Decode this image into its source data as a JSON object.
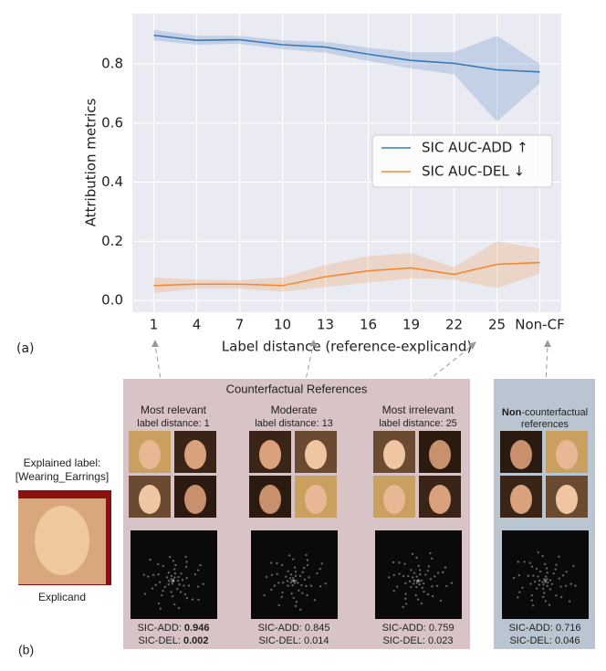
{
  "chart_data": {
    "type": "line",
    "panel_label": "(a)",
    "xlabel": "Label distance (reference-explicand)",
    "ylabel": "Attribution metrics",
    "categories": [
      "1",
      "4",
      "7",
      "10",
      "13",
      "16",
      "19",
      "22",
      "25",
      "Non-CF"
    ],
    "ylim": [
      -0.04,
      0.97
    ],
    "yticks": [
      {
        "value": 0,
        "label": "0.0"
      },
      0.2,
      0.4,
      0.6,
      0.8
    ],
    "grid": true,
    "legend": "right",
    "series": [
      {
        "name": "SIC AUC-ADD ↑",
        "color": "#3a78b5",
        "values": [
          0.897,
          0.88,
          0.882,
          0.865,
          0.857,
          0.833,
          0.812,
          0.802,
          0.78,
          0.773
        ],
        "lower": [
          0.88,
          0.865,
          0.868,
          0.85,
          0.838,
          0.81,
          0.785,
          0.765,
          0.605,
          0.735
        ],
        "upper": [
          0.915,
          0.895,
          0.895,
          0.88,
          0.875,
          0.855,
          0.84,
          0.84,
          0.895,
          0.8
        ]
      },
      {
        "name": "SIC AUC-DEL  ↓",
        "color": "#f28a30",
        "values": [
          0.05,
          0.055,
          0.055,
          0.05,
          0.08,
          0.1,
          0.11,
          0.088,
          0.122,
          0.128
        ],
        "lower": [
          0.025,
          0.04,
          0.04,
          0.03,
          0.045,
          0.06,
          0.075,
          0.07,
          0.042,
          0.09
        ],
        "upper": [
          0.078,
          0.07,
          0.068,
          0.078,
          0.12,
          0.15,
          0.16,
          0.112,
          0.2,
          0.175
        ]
      }
    ]
  },
  "panel_b": {
    "panel_label": "(b)",
    "explicand": {
      "label_title": "Explained label:",
      "label": "[Wearing_Earrings]",
      "caption": "Explicand"
    },
    "cf_title": "Counterfactual References",
    "groups": [
      {
        "title": "Most relevant",
        "subtitle": "label distance: 1",
        "add_label": "SIC-ADD:",
        "add": 0.946,
        "del_label": "SIC-DEL:",
        "del": 0.002,
        "bold": true
      },
      {
        "title": "Moderate",
        "subtitle": "label distance: 13",
        "add_label": "SIC-ADD:",
        "add": 0.845,
        "del_label": "SIC-DEL:",
        "del": 0.014,
        "bold": false
      },
      {
        "title": "Most irrelevant",
        "subtitle": "label distance: 25",
        "add_label": "SIC-ADD:",
        "add": 0.759,
        "del_label": "SIC-DEL:",
        "del": 0.023,
        "bold": false
      }
    ],
    "noncf": {
      "title_bold": "Non",
      "title_rest": "-counterfactual",
      "title_line2": "references",
      "add_label": "SIC-ADD:",
      "add": 0.716,
      "del_label": "SIC-DEL:",
      "del": 0.046,
      "bold": false
    }
  }
}
